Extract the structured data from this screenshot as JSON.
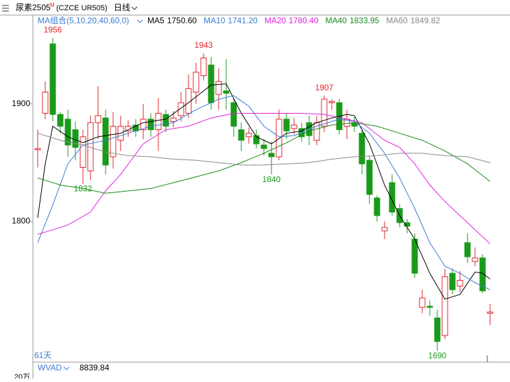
{
  "chart_data": {
    "type": "candlestick",
    "title": "尿素2505",
    "title_sup": "M",
    "code": "(CZCE UR505)",
    "period": "日线",
    "ma_group": "MA组合(5,10,20,40,60,0)",
    "days": "61天",
    "indicator": "WVAD",
    "indicator_value": "8839.84",
    "volume_unit": "20万",
    "up_color": "#e0242c",
    "down_color": "#1a9a1a",
    "ylim": [
      1681,
      1972
    ],
    "yticks": [
      1900,
      1800
    ],
    "open": [
      1861,
      1892,
      1951,
      1891,
      1887,
      1878,
      1846,
      1843,
      1884,
      1888,
      1855,
      1869,
      1877,
      1882,
      1878,
      1887,
      1878,
      1891,
      1885,
      1890,
      1892,
      1910,
      1924,
      1933,
      1908,
      1911,
      1901,
      1878,
      1872,
      1873,
      1865,
      1858,
      1855,
      1887,
      1879,
      1879,
      1884,
      1869,
      1881,
      1901,
      1901,
      1881,
      1884,
      1875,
      1852,
      1820,
      1792,
      1833,
      1811,
      1799,
      1785,
      1727,
      1728,
      1718,
      1703,
      1756,
      1745,
      1782,
      1766,
      1769,
      1722
    ],
    "high": [
      1878,
      1919,
      1956,
      1893,
      1895,
      1885,
      1878,
      1890,
      1915,
      1895,
      1893,
      1890,
      1886,
      1887,
      1900,
      1892,
      1905,
      1895,
      1894,
      1910,
      1925,
      1935,
      1943,
      1940,
      1930,
      1938,
      1905,
      1884,
      1880,
      1878,
      1870,
      1868,
      1895,
      1892,
      1888,
      1884,
      1890,
      1890,
      1907,
      1904,
      1904,
      1895,
      1889,
      1878,
      1856,
      1822,
      1800,
      1840,
      1815,
      1802,
      1790,
      1742,
      1733,
      1725,
      1760,
      1760,
      1758,
      1790,
      1778,
      1772,
      1730
    ],
    "low": [
      1846,
      1887,
      1885,
      1875,
      1855,
      1852,
      1832,
      1835,
      1870,
      1840,
      1845,
      1860,
      1872,
      1872,
      1870,
      1872,
      1860,
      1876,
      1880,
      1885,
      1888,
      1900,
      1920,
      1895,
      1895,
      1895,
      1872,
      1860,
      1866,
      1862,
      1856,
      1840,
      1852,
      1870,
      1874,
      1868,
      1865,
      1865,
      1876,
      1895,
      1874,
      1870,
      1876,
      1840,
      1815,
      1800,
      1785,
      1805,
      1795,
      1790,
      1752,
      1722,
      1720,
      1690,
      1700,
      1738,
      1740,
      1765,
      1762,
      1739,
      1712
    ],
    "close": [
      1862,
      1910,
      1891,
      1881,
      1865,
      1863,
      1872,
      1884,
      1890,
      1848,
      1881,
      1881,
      1881,
      1877,
      1887,
      1878,
      1892,
      1881,
      1888,
      1901,
      1913,
      1927,
      1939,
      1901,
      1919,
      1909,
      1881,
      1869,
      1875,
      1866,
      1862,
      1855,
      1887,
      1877,
      1882,
      1872,
      1873,
      1884,
      1904,
      1902,
      1878,
      1887,
      1881,
      1849,
      1823,
      1805,
      1795,
      1808,
      1799,
      1796,
      1756,
      1735,
      1727,
      1698,
      1753,
      1742,
      1750,
      1770,
      1769,
      1741,
      1723
    ],
    "high_marks": [
      {
        "index": 2,
        "value": 1956
      },
      {
        "index": 22,
        "value": 1943
      },
      {
        "index": 38,
        "value": 1907
      }
    ],
    "low_marks": [
      {
        "index": 6,
        "value": 1832
      },
      {
        "index": 31,
        "value": 1840
      },
      {
        "index": 53,
        "value": 1690
      }
    ],
    "ma_lines": [
      {
        "name": "MA5",
        "value_label": "1750.60",
        "color": "#000000",
        "x": [
          0,
          1,
          2,
          4,
          6,
          8,
          11,
          14,
          17,
          20,
          23,
          25,
          27,
          29,
          31,
          33,
          35,
          37,
          39,
          41,
          42,
          44,
          46,
          48,
          50,
          52,
          54,
          56,
          58,
          59,
          60
        ],
        "values": [
          1803,
          1849,
          1881,
          1872,
          1867,
          1872,
          1875,
          1884,
          1887,
          1901,
          1916,
          1917,
          1892,
          1872,
          1866,
          1875,
          1877,
          1884,
          1888,
          1891,
          1890,
          1866,
          1831,
          1805,
          1785,
          1756,
          1734,
          1738,
          1757,
          1756,
          1751
        ]
      },
      {
        "name": "MA10",
        "value_label": "1741.20",
        "color": "#3a7bd5",
        "x": [
          0,
          2,
          4,
          6,
          9,
          12,
          15,
          18,
          21,
          24,
          26,
          28,
          30,
          32,
          34,
          37,
          40,
          42,
          44,
          46,
          48,
          50,
          52,
          54,
          56,
          58,
          60
        ],
        "values": [
          1782,
          1814,
          1849,
          1865,
          1869,
          1875,
          1881,
          1884,
          1895,
          1904,
          1907,
          1898,
          1881,
          1872,
          1873,
          1881,
          1887,
          1885,
          1875,
          1858,
          1837,
          1811,
          1782,
          1762,
          1756,
          1748,
          1742
        ]
      },
      {
        "name": "MA20",
        "value_label": "1780.40",
        "color": "#e020e0",
        "x": [
          0,
          4,
          7,
          9,
          11,
          14,
          17,
          20,
          23,
          26,
          29,
          32,
          35,
          38,
          41,
          43,
          46,
          48,
          50,
          52,
          54,
          57,
          60
        ],
        "values": [
          1789,
          1797,
          1808,
          1826,
          1840,
          1866,
          1878,
          1881,
          1888,
          1892,
          1892,
          1892,
          1892,
          1891,
          1887,
          1884,
          1869,
          1863,
          1849,
          1831,
          1817,
          1799,
          1781
        ]
      },
      {
        "name": "MA40",
        "value_label": "1833.95",
        "color": "#1a8a1a",
        "x": [
          0,
          3,
          6,
          9,
          12,
          15,
          18,
          21,
          24,
          27,
          30,
          33,
          36,
          39,
          42,
          45,
          48,
          51,
          54,
          57,
          60
        ],
        "values": [
          1837,
          1831,
          1828,
          1824,
          1826,
          1828,
          1833,
          1838,
          1843,
          1850,
          1858,
          1867,
          1877,
          1882,
          1884,
          1881,
          1875,
          1869,
          1860,
          1849,
          1834
        ]
      },
      {
        "name": "MA60",
        "value_label": "1849.82",
        "color": "#888888",
        "x": [
          0,
          3,
          6,
          9,
          12,
          15,
          18,
          21,
          24,
          27,
          30,
          33,
          36,
          39,
          42,
          45,
          48,
          51,
          54,
          57,
          60
        ],
        "values": [
          1875,
          1869,
          1865,
          1859,
          1856,
          1855,
          1853,
          1852,
          1850,
          1848,
          1848,
          1849,
          1850,
          1853,
          1855,
          1856,
          1858,
          1858,
          1856,
          1855,
          1850
        ]
      }
    ]
  }
}
